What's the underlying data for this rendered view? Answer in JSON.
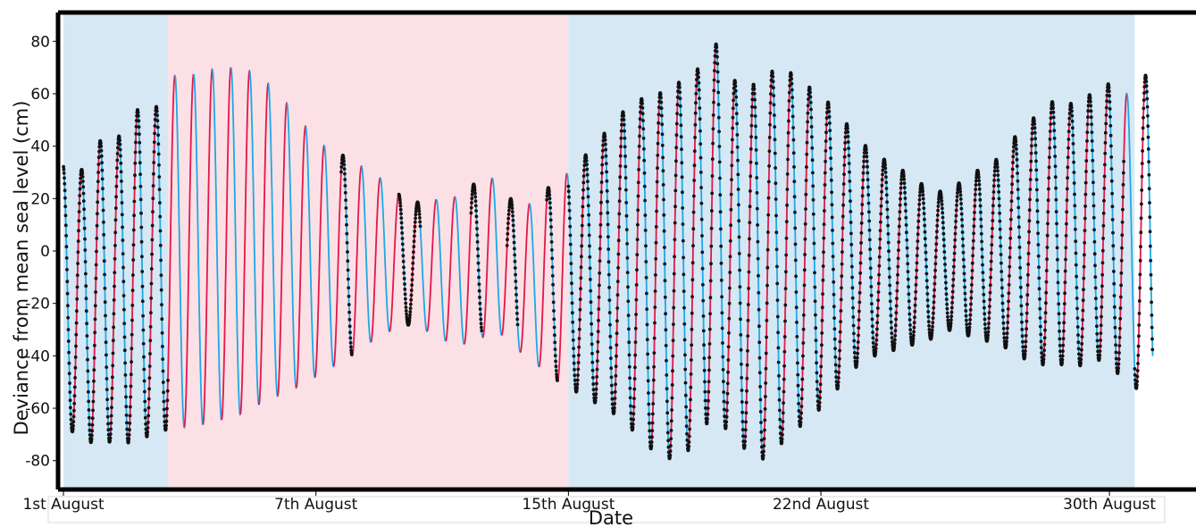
{
  "chart_data": {
    "type": "line",
    "title": "",
    "xlabel": "Date",
    "ylabel": "Deviance from mean sea level (cm)",
    "x_unit": "days of August",
    "xlim": [
      0.85,
      32.4
    ],
    "ylim": [
      -91,
      91
    ],
    "y_ticks": [
      80,
      60,
      40,
      20,
      0,
      -20,
      -40,
      -60,
      -80
    ],
    "x_ticks": [
      {
        "x": 1,
        "label": "1st August"
      },
      {
        "x": 8,
        "label": "7th August"
      },
      {
        "x": 15,
        "label": "15th August"
      },
      {
        "x": 22,
        "label": "22nd August"
      },
      {
        "x": 30,
        "label": "30th August"
      }
    ],
    "shaded_periods": [
      {
        "start": 1.0,
        "end": 3.9,
        "color": "#d5e8f4"
      },
      {
        "start": 3.9,
        "end": 15.0,
        "color": "#fbe1e5"
      },
      {
        "start": 15.0,
        "end": 30.7,
        "color": "#d5e8f4"
      }
    ],
    "colors": {
      "rising_tide": "#e2174d",
      "falling_tide": "#1fa8e6",
      "observations": "#111111"
    },
    "grid": false,
    "legend": "none",
    "envelope": {
      "day": [
        1.0,
        1.5,
        2.0,
        2.5,
        3.0,
        3.5,
        4.0,
        4.5,
        5.0,
        5.5,
        6.0,
        6.5,
        7.0,
        7.5,
        8.0,
        8.5,
        9.0,
        9.5,
        10.0,
        10.5,
        11.0,
        11.5,
        12.0,
        12.5,
        13.0,
        13.5,
        14.0,
        14.5,
        15.0,
        15.5,
        16.0,
        16.5,
        17.0,
        17.5,
        18.0,
        18.5,
        19.0,
        19.5,
        20.0,
        20.5,
        21.0,
        21.5,
        22.0,
        22.5,
        23.0,
        23.5,
        24.0,
        24.5,
        25.0,
        25.5,
        26.0,
        26.5,
        27.0,
        27.5,
        28.0,
        28.5,
        29.0,
        29.5,
        30.0,
        30.5,
        31.0
      ],
      "high_water": [
        33,
        31,
        42,
        43,
        54,
        53,
        67,
        67,
        69,
        70,
        70,
        66,
        60,
        51,
        43,
        37,
        36,
        29,
        27,
        18,
        19,
        20,
        21,
        27,
        28,
        18,
        18,
        25,
        30,
        37,
        45,
        53,
        58,
        60,
        64,
        67,
        82,
        66,
        62,
        68,
        70,
        64,
        60,
        52,
        44,
        36,
        34,
        28,
        24,
        22,
        28,
        32,
        36,
        46,
        52,
        58,
        56,
        60,
        64,
        60,
        67
      ],
      "low_water": [
        -66,
        -72,
        -74,
        -72,
        -74,
        -69,
        -68,
        -67,
        -66,
        -64,
        -62,
        -58,
        -55,
        -52,
        -48,
        -44,
        -40,
        -35,
        -31,
        -28,
        -30,
        -34,
        -36,
        -34,
        -30,
        -37,
        -42,
        -48,
        -52,
        -56,
        -60,
        -64,
        -72,
        -78,
        -80,
        -74,
        -62,
        -70,
        -77,
        -80,
        -72,
        -66,
        -60,
        -52,
        -44,
        -40,
        -38,
        -36,
        -34,
        -30,
        -32,
        -34,
        -36,
        -40,
        -44,
        -42,
        -46,
        -40,
        -44,
        -50,
        -55
      ]
    },
    "observation_periods": [
      [
        1.0,
        3.9
      ],
      [
        8.7,
        9.0
      ],
      [
        10.3,
        10.9
      ],
      [
        12.3,
        12.6
      ],
      [
        13.3,
        13.6
      ],
      [
        14.4,
        14.7
      ],
      [
        15.0,
        30.4
      ],
      [
        30.7,
        31.2
      ]
    ]
  }
}
